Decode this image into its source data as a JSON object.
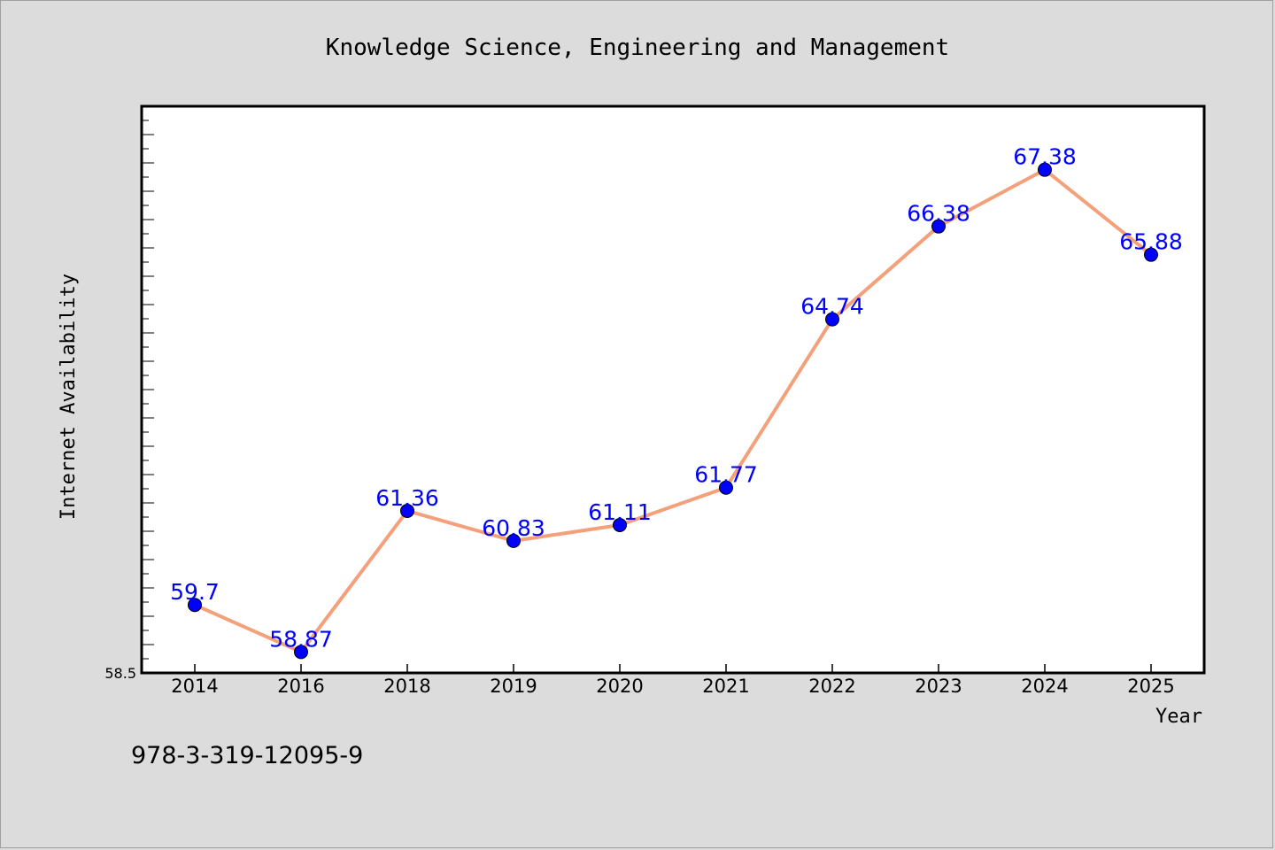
{
  "chart_data": {
    "type": "line",
    "title": "Knowledge Science, Engineering and Management",
    "xlabel": "Year",
    "ylabel": "Internet Availability",
    "categories": [
      "2014",
      "2016",
      "2018",
      "2019",
      "2020",
      "2021",
      "2022",
      "2023",
      "2024",
      "2025"
    ],
    "series": [
      {
        "values": [
          59.7,
          58.87,
          61.36,
          60.83,
          61.11,
          61.77,
          64.74,
          66.38,
          67.38,
          65.88
        ],
        "data_labels": [
          "59.7",
          "58.87",
          "61.36",
          "60.83",
          "61.11",
          "61.77",
          "64.74",
          "66.38",
          "67.38",
          "65.88"
        ],
        "line_color": "#f4a07a",
        "marker_color": "#0000ff"
      }
    ],
    "ylim": [
      58.5,
      68.5
    ],
    "y_min_label": "58.5",
    "grid": false,
    "legend": "none"
  },
  "footer": {
    "isbn": "978-3-319-12095-9"
  },
  "colors": {
    "background": "#dcdcdc",
    "plot_area": "#ffffff",
    "axis": "#000000"
  }
}
